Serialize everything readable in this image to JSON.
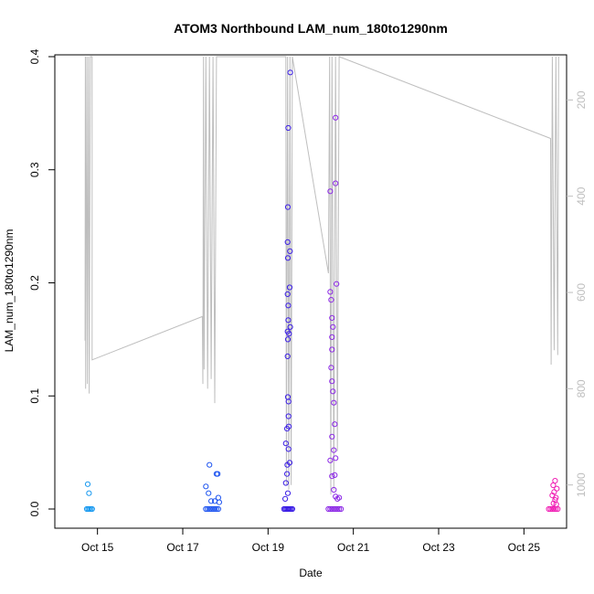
{
  "chart_data": {
    "type": "scatter",
    "title": "ATOM3 Northbound LAM_num_180to1290nm",
    "xlabel": "Date",
    "ylabel": "LAM_num_180to1290nm",
    "xlim": [
      "2021-10-14T00:00",
      "2021-10-26T00:00"
    ],
    "ylim": [
      0,
      0.4
    ],
    "x_ticks": [
      {
        "value": "2021-10-15",
        "label": "Oct 15"
      },
      {
        "value": "2021-10-17",
        "label": "Oct 17"
      },
      {
        "value": "2021-10-19",
        "label": "Oct 19"
      },
      {
        "value": "2021-10-21",
        "label": "Oct 21"
      },
      {
        "value": "2021-10-23",
        "label": "Oct 23"
      },
      {
        "value": "2021-10-25",
        "label": "Oct 25"
      }
    ],
    "y_ticks": [
      0.0,
      0.1,
      0.2,
      0.3,
      0.4
    ],
    "y_tick_labels": [
      "0.0",
      "0.1",
      "0.2",
      "0.3",
      "0.4"
    ],
    "y2_ticks": [
      200,
      400,
      600,
      800,
      1000
    ],
    "y2_tick_labels": [
      "200",
      "400",
      "600",
      "800",
      "1000"
    ],
    "y2_reversed": true,
    "y2_lim": [
      1050,
      110
    ],
    "y2_color": "#bebebe",
    "grid": false,
    "legend": "none",
    "marker": "open-circle",
    "series": [
      {
        "color": "#1a9af0",
        "points": [
          [
            "2021-10-14T18:30",
            0.022
          ],
          [
            "2021-10-14T19:15",
            0.014
          ],
          [
            "2021-10-14T18:00",
            0.0
          ],
          [
            "2021-10-14T18:45",
            0.0
          ],
          [
            "2021-10-14T19:30",
            0.0
          ],
          [
            "2021-10-14T20:15",
            0.0
          ],
          [
            "2021-10-14T21:00",
            0.0
          ]
        ]
      },
      {
        "color": "#1f55f0",
        "points": [
          [
            "2021-10-17T15:00",
            0.039
          ],
          [
            "2021-10-17T13:00",
            0.02
          ],
          [
            "2021-10-17T14:30",
            0.014
          ],
          [
            "2021-10-17T16:00",
            0.007
          ],
          [
            "2021-10-17T18:00",
            0.007
          ],
          [
            "2021-10-17T19:00",
            0.031
          ],
          [
            "2021-10-17T19:40",
            0.031
          ],
          [
            "2021-10-17T20:00",
            0.01
          ],
          [
            "2021-10-17T20:30",
            0.006
          ],
          [
            "2021-10-17T13:00",
            0.0
          ],
          [
            "2021-10-17T14:00",
            0.0
          ],
          [
            "2021-10-17T15:00",
            0.0
          ],
          [
            "2021-10-17T16:00",
            0.0
          ],
          [
            "2021-10-17T17:00",
            0.0
          ],
          [
            "2021-10-17T18:00",
            0.0
          ],
          [
            "2021-10-17T19:00",
            0.0
          ],
          [
            "2021-10-17T20:00",
            0.0
          ]
        ]
      },
      {
        "color": "#3c1fe6",
        "points": [
          [
            "2021-10-19T12:30",
            0.386
          ],
          [
            "2021-10-19T11:20",
            0.337
          ],
          [
            "2021-10-19T11:10",
            0.267
          ],
          [
            "2021-10-19T11:00",
            0.236
          ],
          [
            "2021-10-19T12:20",
            0.228
          ],
          [
            "2021-10-19T11:10",
            0.222
          ],
          [
            "2021-10-19T12:10",
            0.196
          ],
          [
            "2021-10-19T11:00",
            0.19
          ],
          [
            "2021-10-19T11:20",
            0.18
          ],
          [
            "2021-10-19T11:20",
            0.167
          ],
          [
            "2021-10-19T12:30",
            0.161
          ],
          [
            "2021-10-19T11:00",
            0.157
          ],
          [
            "2021-10-19T11:50",
            0.155
          ],
          [
            "2021-10-19T11:10",
            0.15
          ],
          [
            "2021-10-19T11:00",
            0.135
          ],
          [
            "2021-10-19T11:10",
            0.099
          ],
          [
            "2021-10-19T11:30",
            0.095
          ],
          [
            "2021-10-19T11:30",
            0.082
          ],
          [
            "2021-10-19T11:40",
            0.073
          ],
          [
            "2021-10-19T10:40",
            0.071
          ],
          [
            "2021-10-19T10:00",
            0.058
          ],
          [
            "2021-10-19T11:30",
            0.053
          ],
          [
            "2021-10-19T12:10",
            0.041
          ],
          [
            "2021-10-19T10:50",
            0.039
          ],
          [
            "2021-10-19T10:40",
            0.031
          ],
          [
            "2021-10-19T10:00",
            0.023
          ],
          [
            "2021-10-19T11:10",
            0.014
          ],
          [
            "2021-10-19T09:40",
            0.009
          ],
          [
            "2021-10-19T09:00",
            0.0
          ],
          [
            "2021-10-19T09:40",
            0.0
          ],
          [
            "2021-10-19T10:20",
            0.0
          ],
          [
            "2021-10-19T11:00",
            0.0
          ],
          [
            "2021-10-19T11:40",
            0.0
          ],
          [
            "2021-10-19T12:20",
            0.0
          ],
          [
            "2021-10-19T13:00",
            0.0
          ],
          [
            "2021-10-19T13:40",
            0.0
          ]
        ]
      },
      {
        "color": "#8c28e6",
        "points": [
          [
            "2021-10-20T14:00",
            0.346
          ],
          [
            "2021-10-20T14:00",
            0.288
          ],
          [
            "2021-10-20T11:00",
            0.281
          ],
          [
            "2021-10-20T14:30",
            0.199
          ],
          [
            "2021-10-20T11:00",
            0.192
          ],
          [
            "2021-10-20T11:30",
            0.185
          ],
          [
            "2021-10-20T12:00",
            0.169
          ],
          [
            "2021-10-20T12:30",
            0.161
          ],
          [
            "2021-10-20T12:00",
            0.152
          ],
          [
            "2021-10-20T12:00",
            0.141
          ],
          [
            "2021-10-20T11:30",
            0.125
          ],
          [
            "2021-10-20T12:00",
            0.113
          ],
          [
            "2021-10-20T12:30",
            0.104
          ],
          [
            "2021-10-20T13:00",
            0.094
          ],
          [
            "2021-10-20T13:30",
            0.075
          ],
          [
            "2021-10-20T12:00",
            0.064
          ],
          [
            "2021-10-20T13:00",
            0.052
          ],
          [
            "2021-10-20T14:00",
            0.045
          ],
          [
            "2021-10-20T11:00",
            0.043
          ],
          [
            "2021-10-20T13:30",
            0.03
          ],
          [
            "2021-10-20T12:00",
            0.029
          ],
          [
            "2021-10-20T13:00",
            0.017
          ],
          [
            "2021-10-20T14:00",
            0.011
          ],
          [
            "2021-10-20T15:00",
            0.009
          ],
          [
            "2021-10-20T16:00",
            0.01
          ],
          [
            "2021-10-20T10:00",
            0.0
          ],
          [
            "2021-10-20T11:00",
            0.0
          ],
          [
            "2021-10-20T12:00",
            0.0
          ],
          [
            "2021-10-20T13:00",
            0.0
          ],
          [
            "2021-10-20T14:00",
            0.0
          ],
          [
            "2021-10-20T15:00",
            0.0
          ],
          [
            "2021-10-20T16:00",
            0.0
          ],
          [
            "2021-10-20T17:00",
            0.0
          ]
        ]
      },
      {
        "color": "#f01eb4",
        "points": [
          [
            "2021-10-25T17:30",
            0.025
          ],
          [
            "2021-10-25T16:30",
            0.021
          ],
          [
            "2021-10-25T18:30",
            0.018
          ],
          [
            "2021-10-25T17:00",
            0.015
          ],
          [
            "2021-10-25T16:00",
            0.012
          ],
          [
            "2021-10-25T18:00",
            0.01
          ],
          [
            "2021-10-25T17:30",
            0.008
          ],
          [
            "2021-10-25T16:40",
            0.005
          ],
          [
            "2021-10-25T18:10",
            0.004
          ],
          [
            "2021-10-25T14:00",
            0.0
          ],
          [
            "2021-10-25T15:00",
            0.0
          ],
          [
            "2021-10-25T16:00",
            0.0
          ],
          [
            "2021-10-25T17:00",
            0.0
          ],
          [
            "2021-10-25T18:00",
            0.0
          ],
          [
            "2021-10-25T19:00",
            0.0
          ]
        ]
      }
    ],
    "secondary_line": {
      "color": "#bebebe",
      "points": [
        [
          "2021-10-14T17:00",
          700
        ],
        [
          "2021-10-14T17:10",
          110
        ],
        [
          "2021-10-14T17:20",
          800
        ],
        [
          "2021-10-14T18:00",
          110
        ],
        [
          "2021-10-14T18:20",
          790
        ],
        [
          "2021-10-14T19:00",
          110
        ],
        [
          "2021-10-14T19:20",
          810
        ],
        [
          "2021-10-14T20:00",
          110
        ],
        [
          "2021-10-14T21:00",
          110
        ],
        [
          "2021-10-14T21:00",
          740
        ],
        [
          "2021-10-17T11:00",
          650
        ],
        [
          "2021-10-17T11:20",
          790
        ],
        [
          "2021-10-17T11:40",
          110
        ],
        [
          "2021-10-17T12:00",
          760
        ],
        [
          "2021-10-17T13:00",
          110
        ],
        [
          "2021-10-17T14:00",
          800
        ],
        [
          "2021-10-17T15:00",
          110
        ],
        [
          "2021-10-17T16:00",
          780
        ],
        [
          "2021-10-17T17:00",
          110
        ],
        [
          "2021-10-17T18:00",
          830
        ],
        [
          "2021-10-17T19:00",
          110
        ],
        [
          "2021-10-19T10:00",
          110
        ],
        [
          "2021-10-19T10:20",
          1000
        ],
        [
          "2021-10-19T11:00",
          110
        ],
        [
          "2021-10-19T11:40",
          1010
        ],
        [
          "2021-10-19T12:20",
          110
        ],
        [
          "2021-10-19T13:00",
          1000
        ],
        [
          "2021-10-19T13:40",
          110
        ],
        [
          "2021-10-20T10:00",
          560
        ],
        [
          "2021-10-20T10:40",
          110
        ],
        [
          "2021-10-20T11:20",
          1020
        ],
        [
          "2021-10-20T12:00",
          110
        ],
        [
          "2021-10-20T13:00",
          1010
        ],
        [
          "2021-10-20T14:00",
          110
        ],
        [
          "2021-10-20T15:00",
          930
        ],
        [
          "2021-10-20T16:00",
          110
        ],
        [
          "2021-10-25T15:00",
          280
        ],
        [
          "2021-10-25T15:20",
          750
        ],
        [
          "2021-10-25T16:00",
          110
        ],
        [
          "2021-10-25T17:00",
          720
        ],
        [
          "2021-10-25T18:00",
          110
        ],
        [
          "2021-10-25T19:00",
          730
        ],
        [
          "2021-10-25T19:30",
          110
        ]
      ]
    }
  }
}
